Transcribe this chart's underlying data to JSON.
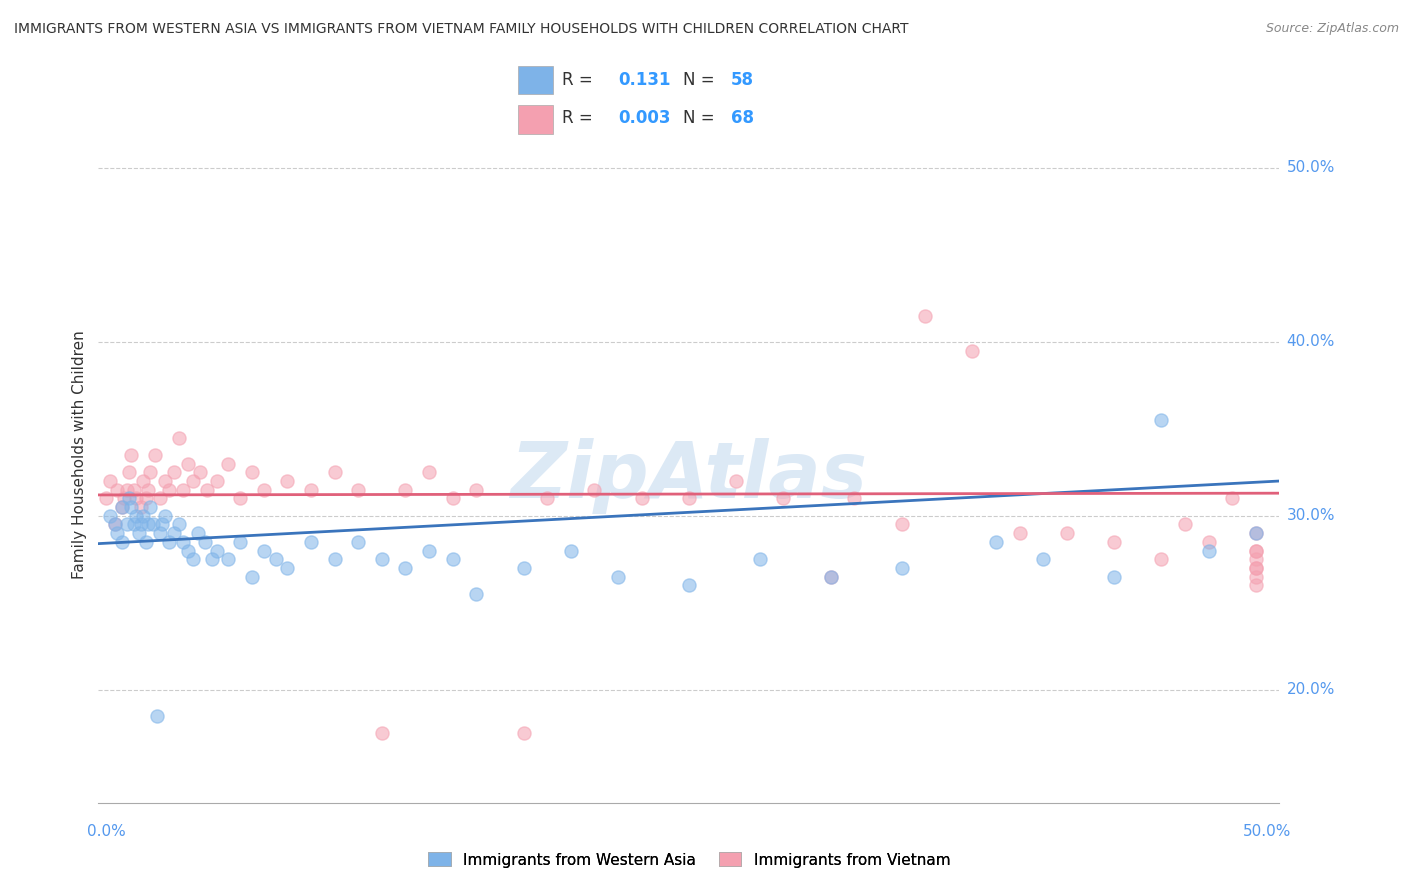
{
  "title": "IMMIGRANTS FROM WESTERN ASIA VS IMMIGRANTS FROM VIETNAM FAMILY HOUSEHOLDS WITH CHILDREN CORRELATION CHART",
  "source": "Source: ZipAtlas.com",
  "ylabel": "Family Households with Children",
  "ytick_vals": [
    0.2,
    0.3,
    0.4,
    0.5
  ],
  "ytick_labels": [
    "20.0%",
    "30.0%",
    "40.0%",
    "50.0%"
  ],
  "grid_vals": [
    0.2,
    0.3,
    0.4,
    0.5
  ],
  "xlim": [
    0.0,
    0.5
  ],
  "ylim": [
    0.135,
    0.535
  ],
  "legend1_r": "0.131",
  "legend1_n": "58",
  "legend2_r": "0.003",
  "legend2_n": "68",
  "blue_color": "#7EB3E8",
  "pink_color": "#F4A0B0",
  "blue_line_color": "#3A74BC",
  "pink_line_color": "#E0607A",
  "watermark": "ZipAtlas",
  "watermark_color": "#A8C8E8",
  "blue_scatter_x": [
    0.005,
    0.007,
    0.008,
    0.01,
    0.01,
    0.012,
    0.013,
    0.014,
    0.015,
    0.016,
    0.017,
    0.018,
    0.019,
    0.02,
    0.021,
    0.022,
    0.023,
    0.025,
    0.026,
    0.027,
    0.028,
    0.03,
    0.032,
    0.034,
    0.036,
    0.038,
    0.04,
    0.042,
    0.045,
    0.048,
    0.05,
    0.055,
    0.06,
    0.065,
    0.07,
    0.075,
    0.08,
    0.09,
    0.1,
    0.11,
    0.12,
    0.13,
    0.14,
    0.15,
    0.16,
    0.18,
    0.2,
    0.22,
    0.25,
    0.28,
    0.31,
    0.34,
    0.38,
    0.4,
    0.43,
    0.45,
    0.47,
    0.49
  ],
  "blue_scatter_y": [
    0.3,
    0.295,
    0.29,
    0.285,
    0.305,
    0.295,
    0.31,
    0.305,
    0.295,
    0.3,
    0.29,
    0.295,
    0.3,
    0.285,
    0.295,
    0.305,
    0.295,
    0.185,
    0.29,
    0.295,
    0.3,
    0.285,
    0.29,
    0.295,
    0.285,
    0.28,
    0.275,
    0.29,
    0.285,
    0.275,
    0.28,
    0.275,
    0.285,
    0.265,
    0.28,
    0.275,
    0.27,
    0.285,
    0.275,
    0.285,
    0.275,
    0.27,
    0.28,
    0.275,
    0.255,
    0.27,
    0.28,
    0.265,
    0.26,
    0.275,
    0.265,
    0.27,
    0.285,
    0.275,
    0.265,
    0.355,
    0.28,
    0.29
  ],
  "pink_scatter_x": [
    0.003,
    0.005,
    0.007,
    0.008,
    0.01,
    0.011,
    0.012,
    0.013,
    0.014,
    0.015,
    0.016,
    0.018,
    0.019,
    0.02,
    0.021,
    0.022,
    0.024,
    0.026,
    0.028,
    0.03,
    0.032,
    0.034,
    0.036,
    0.038,
    0.04,
    0.043,
    0.046,
    0.05,
    0.055,
    0.06,
    0.065,
    0.07,
    0.08,
    0.09,
    0.1,
    0.11,
    0.12,
    0.13,
    0.14,
    0.15,
    0.16,
    0.18,
    0.19,
    0.21,
    0.23,
    0.25,
    0.27,
    0.29,
    0.31,
    0.32,
    0.34,
    0.35,
    0.37,
    0.39,
    0.41,
    0.43,
    0.45,
    0.46,
    0.47,
    0.48,
    0.49,
    0.49,
    0.49,
    0.49,
    0.49,
    0.49,
    0.49,
    0.49
  ],
  "pink_scatter_y": [
    0.31,
    0.32,
    0.295,
    0.315,
    0.305,
    0.31,
    0.315,
    0.325,
    0.335,
    0.315,
    0.31,
    0.305,
    0.32,
    0.31,
    0.315,
    0.325,
    0.335,
    0.31,
    0.32,
    0.315,
    0.325,
    0.345,
    0.315,
    0.33,
    0.32,
    0.325,
    0.315,
    0.32,
    0.33,
    0.31,
    0.325,
    0.315,
    0.32,
    0.315,
    0.325,
    0.315,
    0.175,
    0.315,
    0.325,
    0.31,
    0.315,
    0.175,
    0.31,
    0.315,
    0.31,
    0.31,
    0.32,
    0.31,
    0.265,
    0.31,
    0.295,
    0.415,
    0.395,
    0.29,
    0.29,
    0.285,
    0.275,
    0.295,
    0.285,
    0.31,
    0.27,
    0.28,
    0.29,
    0.28,
    0.27,
    0.26,
    0.275,
    0.265
  ]
}
